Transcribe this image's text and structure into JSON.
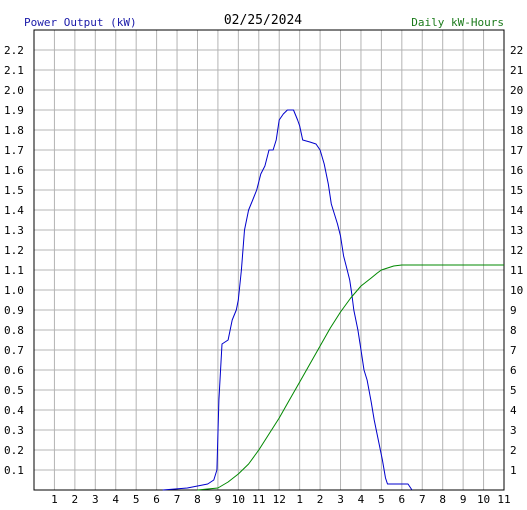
{
  "chart_data": {
    "type": "line",
    "title": "02/25/2024",
    "y_left_label": "Power Output (kW)",
    "y_right_label": "Daily kW-Hours",
    "left_axis": {
      "min": 0,
      "max": 2.3,
      "ticks": [
        "0.1",
        "0.2",
        "0.3",
        "0.4",
        "0.5",
        "0.6",
        "0.7",
        "0.8",
        "0.9",
        "1.0",
        "1.1",
        "1.2",
        "1.3",
        "1.4",
        "1.5",
        "1.6",
        "1.7",
        "1.8",
        "1.9",
        "2.0",
        "2.1",
        "2.2"
      ]
    },
    "right_axis": {
      "min": 0,
      "max": 23,
      "ticks": [
        "1",
        "2",
        "3",
        "4",
        "5",
        "6",
        "7",
        "8",
        "9",
        "10",
        "11",
        "12",
        "13",
        "14",
        "15",
        "16",
        "17",
        "18",
        "19",
        "20",
        "21",
        "22"
      ]
    },
    "x_axis": {
      "min": 0,
      "max": 23,
      "tick_labels": [
        "1",
        "2",
        "3",
        "4",
        "5",
        "6",
        "7",
        "8",
        "9",
        "10",
        "11",
        "12",
        "1",
        "2",
        "3",
        "4",
        "5",
        "6",
        "7",
        "8",
        "9",
        "10",
        "11"
      ]
    },
    "grid": true,
    "series": [
      {
        "axis": "left",
        "color": "#0000cc",
        "points": [
          [
            6.3,
            0
          ],
          [
            7.5,
            0.01
          ],
          [
            8.0,
            0.02
          ],
          [
            8.5,
            0.03
          ],
          [
            8.8,
            0.05
          ],
          [
            8.95,
            0.1
          ],
          [
            9.05,
            0.45
          ],
          [
            9.2,
            0.73
          ],
          [
            9.5,
            0.75
          ],
          [
            9.7,
            0.85
          ],
          [
            9.9,
            0.9
          ],
          [
            10.0,
            0.95
          ],
          [
            10.15,
            1.1
          ],
          [
            10.3,
            1.3
          ],
          [
            10.5,
            1.4
          ],
          [
            10.7,
            1.45
          ],
          [
            10.9,
            1.5
          ],
          [
            11.1,
            1.58
          ],
          [
            11.3,
            1.62
          ],
          [
            11.5,
            1.7
          ],
          [
            11.7,
            1.7
          ],
          [
            11.85,
            1.75
          ],
          [
            12.0,
            1.85
          ],
          [
            12.2,
            1.88
          ],
          [
            12.4,
            1.9
          ],
          [
            12.7,
            1.9
          ],
          [
            12.9,
            1.85
          ],
          [
            13.0,
            1.82
          ],
          [
            13.15,
            1.75
          ],
          [
            13.5,
            1.74
          ],
          [
            13.8,
            1.73
          ],
          [
            14.0,
            1.7
          ],
          [
            14.2,
            1.63
          ],
          [
            14.4,
            1.53
          ],
          [
            14.55,
            1.43
          ],
          [
            14.7,
            1.38
          ],
          [
            14.85,
            1.33
          ],
          [
            15.0,
            1.27
          ],
          [
            15.15,
            1.17
          ],
          [
            15.3,
            1.11
          ],
          [
            15.45,
            1.05
          ],
          [
            15.55,
            0.98
          ],
          [
            15.65,
            0.9
          ],
          [
            15.85,
            0.8
          ],
          [
            16.0,
            0.7
          ],
          [
            16.15,
            0.6
          ],
          [
            16.3,
            0.55
          ],
          [
            16.5,
            0.44
          ],
          [
            16.65,
            0.35
          ],
          [
            16.85,
            0.25
          ],
          [
            17.05,
            0.15
          ],
          [
            17.2,
            0.06
          ],
          [
            17.3,
            0.03
          ],
          [
            18.3,
            0.03
          ],
          [
            18.5,
            0.0
          ]
        ]
      },
      {
        "axis": "right",
        "color": "#008800",
        "points": [
          [
            8.0,
            0
          ],
          [
            8.5,
            0.05
          ],
          [
            9.0,
            0.1
          ],
          [
            9.5,
            0.4
          ],
          [
            10.0,
            0.8
          ],
          [
            10.5,
            1.3
          ],
          [
            11.0,
            2.0
          ],
          [
            11.5,
            2.8
          ],
          [
            12.0,
            3.6
          ],
          [
            12.5,
            4.5
          ],
          [
            13.0,
            5.4
          ],
          [
            13.5,
            6.3
          ],
          [
            14.0,
            7.2
          ],
          [
            14.5,
            8.1
          ],
          [
            15.0,
            8.9
          ],
          [
            15.5,
            9.6
          ],
          [
            16.0,
            10.2
          ],
          [
            16.5,
            10.6
          ],
          [
            16.8,
            10.85
          ],
          [
            17.0,
            11.0
          ],
          [
            17.3,
            11.1
          ],
          [
            17.6,
            11.2
          ],
          [
            18.0,
            11.25
          ],
          [
            20.0,
            11.25
          ],
          [
            23.0,
            11.25
          ]
        ]
      }
    ]
  }
}
